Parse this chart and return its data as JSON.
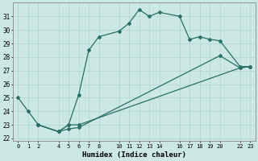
{
  "xlabel": "Humidex (Indice chaleur)",
  "bg_color": "#cce8e4",
  "line_color": "#2a6e65",
  "grid_color": "#b0d4d0",
  "xlim": [
    -0.5,
    23.5
  ],
  "ylim": [
    21.8,
    32.0
  ],
  "yticks": [
    22,
    23,
    24,
    25,
    26,
    27,
    28,
    29,
    30,
    31
  ],
  "xticks": [
    0,
    1,
    2,
    4,
    5,
    6,
    7,
    8,
    10,
    11,
    12,
    13,
    14,
    16,
    17,
    18,
    19,
    20,
    22,
    23
  ],
  "xtick_labels": [
    "0",
    "1",
    "2",
    "4",
    "5",
    "6",
    "7",
    "8",
    "10",
    "11",
    "12",
    "13",
    "14",
    "16",
    "17",
    "18",
    "19",
    "20",
    "22",
    "23"
  ],
  "lines": [
    {
      "x": [
        0,
        1,
        2,
        4,
        5,
        6,
        7,
        8,
        10,
        11,
        12,
        13,
        14,
        16,
        17,
        18,
        19,
        20,
        22,
        23
      ],
      "y": [
        25.0,
        24.0,
        23.0,
        22.5,
        23.0,
        25.2,
        28.5,
        29.5,
        29.9,
        30.5,
        31.5,
        31.0,
        31.3,
        31.0,
        29.3,
        29.5,
        29.3,
        29.2,
        27.3,
        27.3
      ]
    },
    {
      "x": [
        2,
        4,
        5,
        6,
        22,
        23
      ],
      "y": [
        23.0,
        22.5,
        23.0,
        23.0,
        27.2,
        27.3
      ]
    },
    {
      "x": [
        2,
        4,
        5,
        6,
        20,
        22,
        23
      ],
      "y": [
        23.0,
        22.5,
        22.7,
        22.8,
        28.1,
        27.2,
        27.3
      ]
    }
  ]
}
